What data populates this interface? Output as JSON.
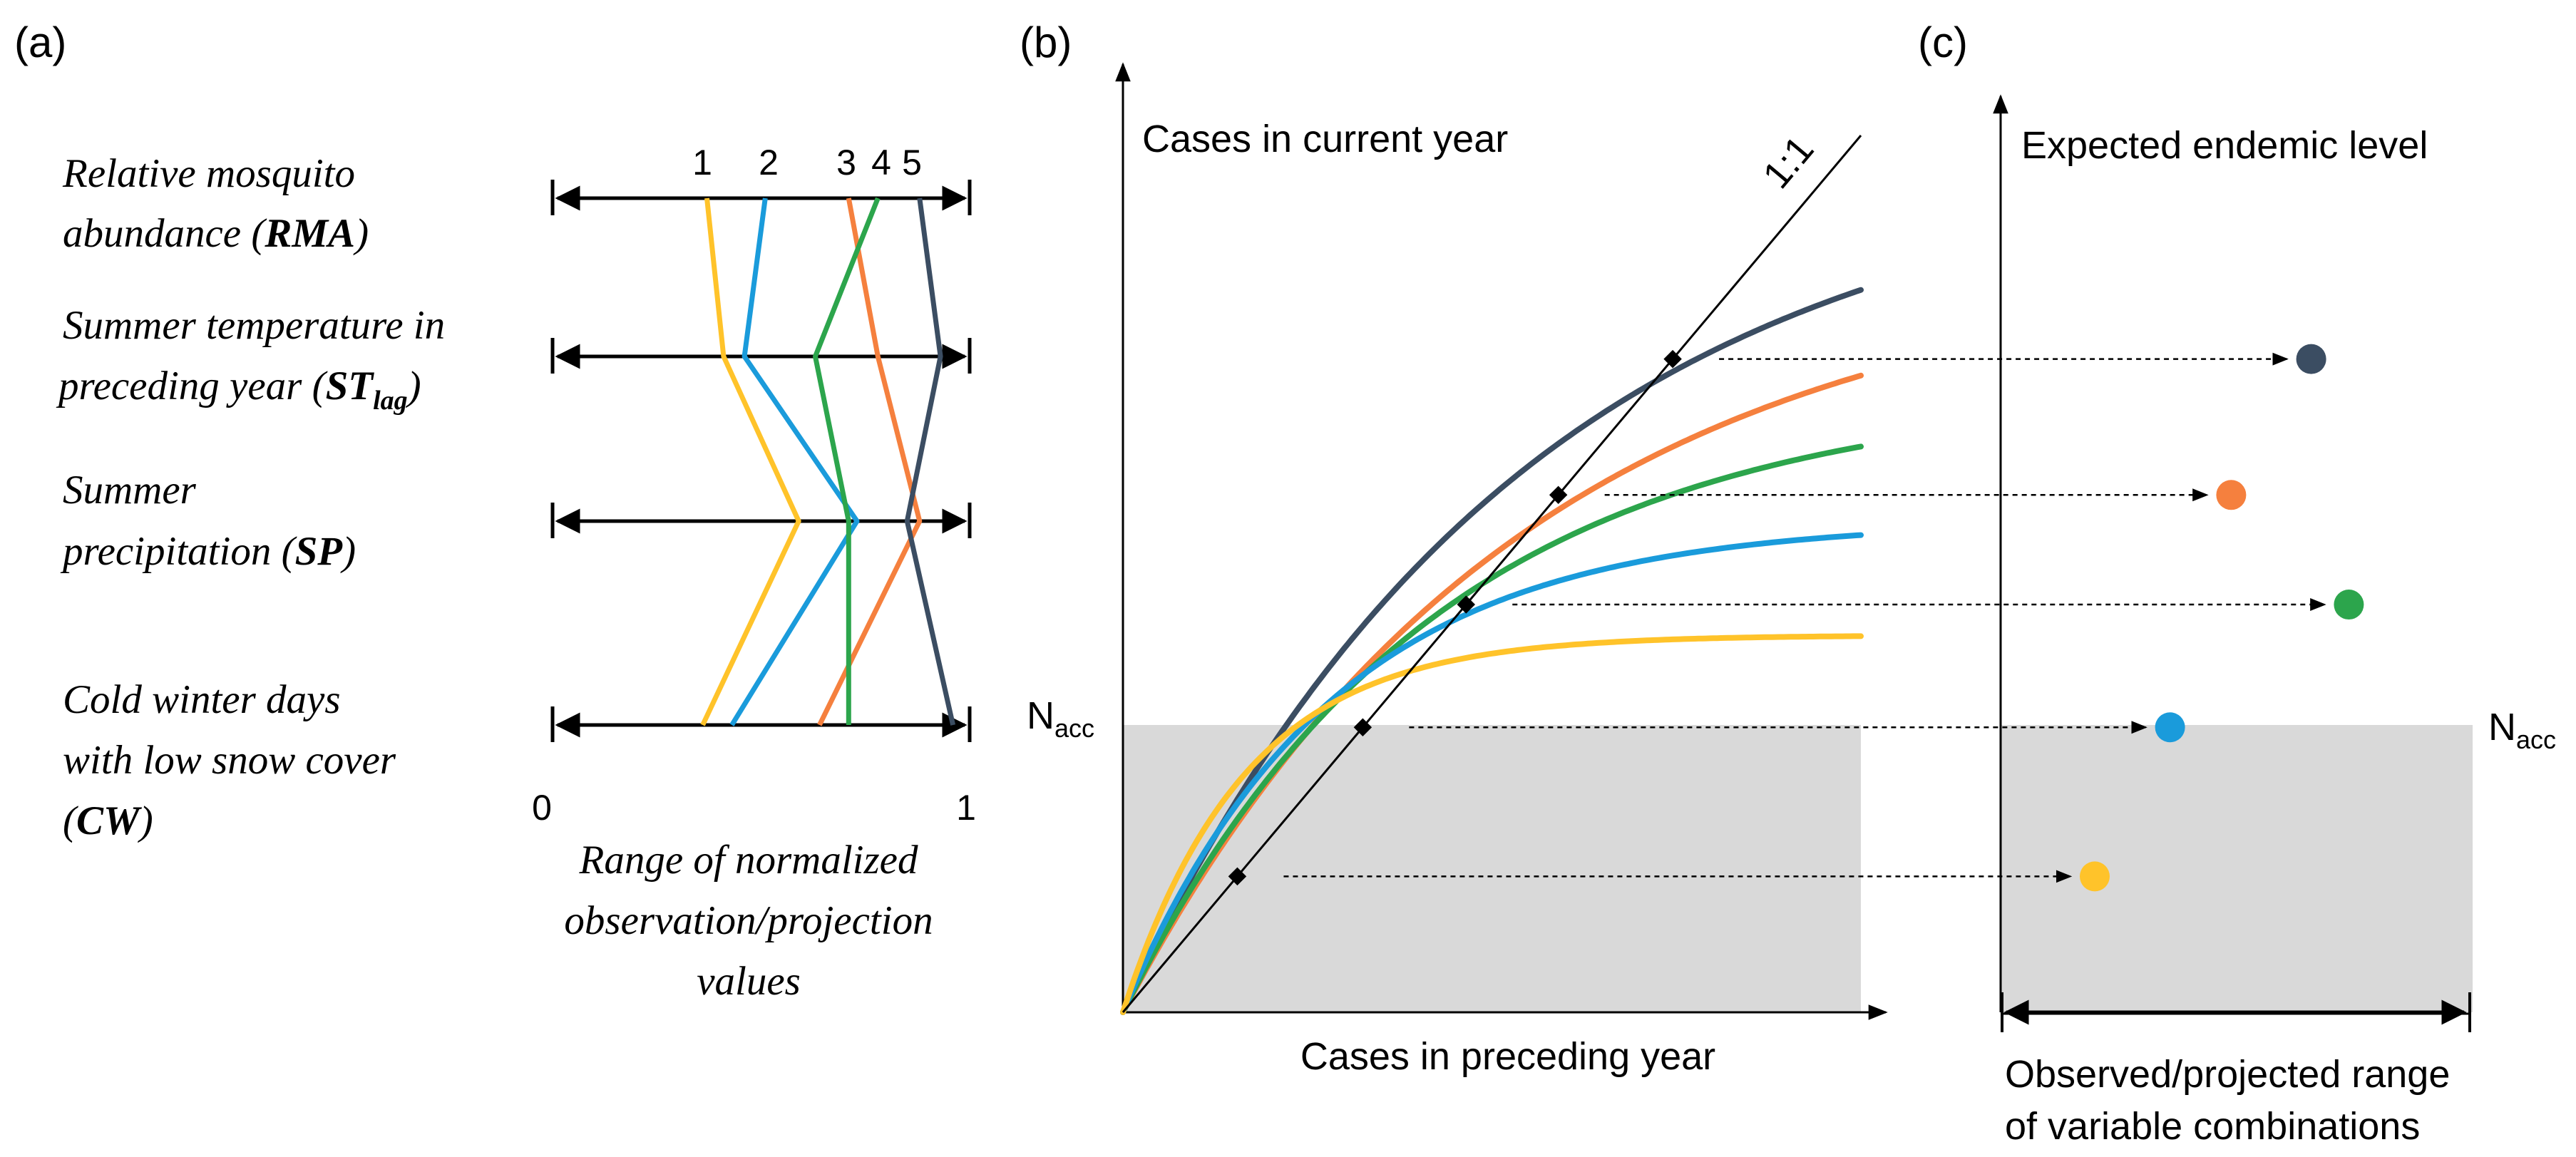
{
  "colors": {
    "line1": "#FFC32A",
    "line2": "#1A9BDB",
    "line3": "#F5803E",
    "line4": "#2CA54C",
    "line5": "#3B4D62",
    "shade": "#D9D9D9",
    "ink": "#000000"
  },
  "panel_a": {
    "label": "(a)",
    "scenario_numbers": [
      "1",
      "2",
      "3",
      "4",
      "5"
    ],
    "variables": [
      {
        "line1": "Relative mosquito",
        "line2_pre": "abundance (",
        "abbr": "RMA",
        "line2_post": ")"
      },
      {
        "line1": "Summer temperature in",
        "line2_pre": "preceding year (",
        "abbr": "ST",
        "sub": "lag",
        "line2_post": ")"
      },
      {
        "line1": "Summer",
        "line2_pre": "precipitation (",
        "abbr": "SP",
        "line2_post": ")"
      },
      {
        "line1": "Cold winter days",
        "line2": "with low snow cover",
        "line3_pre": "(",
        "abbr": "CW",
        "line3_post": ")"
      }
    ],
    "axis_min_label": "0",
    "axis_max_label": "1",
    "axis_title": [
      "Range of normalized",
      "observation/projection",
      "values"
    ],
    "normalized_values": {
      "1": [
        0.37,
        0.41,
        0.59,
        0.36
      ],
      "2": [
        0.51,
        0.46,
        0.73,
        0.43
      ],
      "3": [
        0.71,
        0.78,
        0.88,
        0.64
      ],
      "4": [
        0.78,
        0.63,
        0.71,
        0.71
      ],
      "5": [
        0.88,
        0.93,
        0.85,
        0.96
      ]
    }
  },
  "panel_b": {
    "label": "(b)",
    "y_axis_title": "Cases in current year",
    "x_axis_title": "Cases in preceding year",
    "identity_label": "1:1",
    "threshold_label": "N",
    "threshold_sub": "acc",
    "curves": [
      {
        "id": "5",
        "asymptote": 0.98,
        "rate": 1.8,
        "intersection": 0.745
      },
      {
        "id": "3",
        "asymptote": 0.86,
        "rate": 1.6,
        "intersection": 0.59
      },
      {
        "id": "4",
        "asymptote": 0.71,
        "rate": 1.7,
        "intersection": 0.465
      },
      {
        "id": "2",
        "asymptote": 0.56,
        "rate": 2.0,
        "intersection": 0.325
      },
      {
        "id": "1",
        "asymptote": 0.43,
        "rate": 2.6,
        "intersection": 0.155
      }
    ],
    "threshold_fraction": 0.4
  },
  "panel_c": {
    "label": "(c)",
    "y_axis_title": "Expected endemic level",
    "x_axis_title": [
      "Observed/projected range",
      "of variable combinations"
    ],
    "threshold_label": "N",
    "threshold_sub": "acc",
    "points": [
      {
        "id": "5",
        "level": 0.745,
        "position": 0.66
      },
      {
        "id": "3",
        "level": 0.59,
        "position": 0.49
      },
      {
        "id": "4",
        "level": 0.465,
        "position": 0.74
      },
      {
        "id": "2",
        "level": 0.325,
        "position": 0.36
      },
      {
        "id": "1",
        "level": 0.155,
        "position": 0.2
      }
    ]
  }
}
